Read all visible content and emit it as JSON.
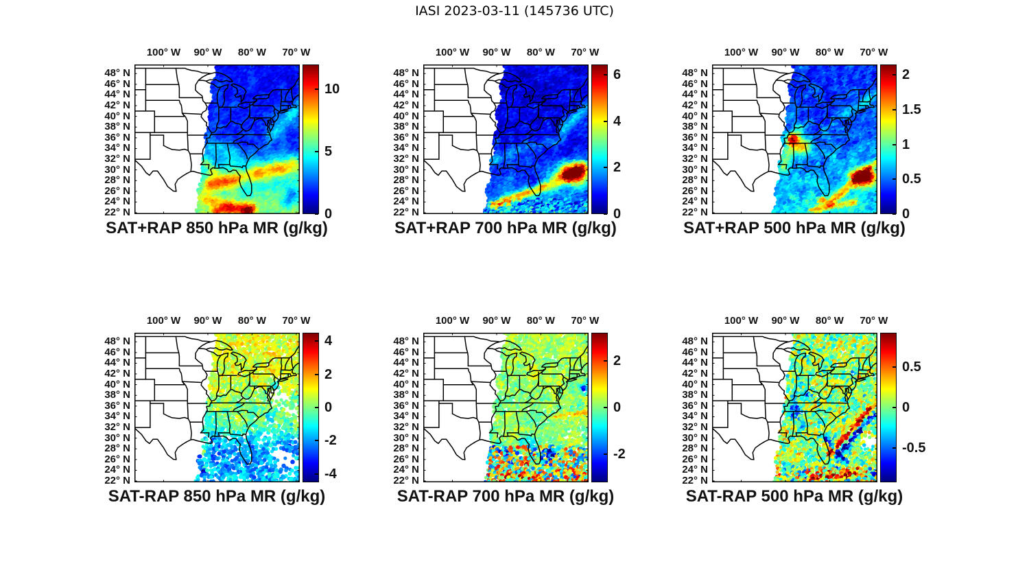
{
  "figure": {
    "title": "IASI 2023-03-11 (145736 UTC)"
  },
  "axes": {
    "lon_ticks": [
      {
        "lon": -100,
        "label": "100° W"
      },
      {
        "lon": -90,
        "label": "90° W"
      },
      {
        "lon": -80,
        "label": "80° W"
      },
      {
        "lon": -70,
        "label": "70° W"
      }
    ],
    "lat_ticks": [
      {
        "lat": 48,
        "label": "48° N"
      },
      {
        "lat": 46,
        "label": "46° N"
      },
      {
        "lat": 44,
        "label": "44° N"
      },
      {
        "lat": 42,
        "label": "42° N"
      },
      {
        "lat": 40,
        "label": "40° N"
      },
      {
        "lat": 38,
        "label": "38° N"
      },
      {
        "lat": 36,
        "label": "36° N"
      },
      {
        "lat": 34,
        "label": "34° N"
      },
      {
        "lat": 32,
        "label": "32° N"
      },
      {
        "lat": 30,
        "label": "30° N"
      },
      {
        "lat": 28,
        "label": "28° N"
      },
      {
        "lat": 26,
        "label": "26° N"
      },
      {
        "lat": 24,
        "label": "24° N"
      },
      {
        "lat": 22,
        "label": "22° N"
      }
    ]
  },
  "chart_data": {
    "type": "geo-scatter-grid",
    "description": "Six map panels of IASI satellite mixing-ratio retrievals over the eastern United States. Top row: SAT+RAP retrieved mixing ratio at 850/700/500 hPa. Bottom row: SAT-RAP differences at the same levels. Jet colormap, satellite swath covers roughly east of 92W-88W.",
    "units": "g/kg",
    "colormap": "jet",
    "extent": {
      "lon_min": -106.6,
      "lon_max": -69.2,
      "lat_min": 21.75,
      "lat_max": 49.7
    },
    "swath": {
      "west_base": -92.6,
      "west_slope": 0.16,
      "wiggle": 0.35
    },
    "panels": [
      {
        "id": "sat-plus-rap-850",
        "title": "SAT+RAP 850 hPa MR (g/kg)",
        "row": 0,
        "col": 0,
        "colorbar": {
          "min": 0,
          "max": 12,
          "ticks": [
            {
              "value": 0,
              "label": "0"
            },
            {
              "value": 5,
              "label": "5"
            },
            {
              "value": 10,
              "label": "10"
            }
          ]
        },
        "dots": {
          "step": 2.6,
          "radius": 3.1,
          "skip": 0
        },
        "field": {
          "base": [
            [
              21.75,
              6.3
            ],
            [
              25,
              5.6
            ],
            [
              28,
              4.9
            ],
            [
              31,
              3.9
            ],
            [
              33,
              2.9
            ],
            [
              35,
              2.3
            ],
            [
              38,
              1.9
            ],
            [
              49.7,
              1.6
            ]
          ],
          "blobs": [
            [
              -80.8,
              22.1,
              1.3,
              0.8,
              5
            ],
            [
              -81.6,
              28.3,
              1.3,
              2.2,
              -1.7
            ],
            [
              -70.8,
              25,
              2,
              1.4,
              -2.3
            ],
            [
              -72.5,
              23.5,
              1.5,
              1,
              -1.8
            ]
          ],
          "bands": [
            [
              -89.5,
              27,
              -70.3,
              30.8,
              1.4,
              4.3
            ],
            [
              -88,
              22.2,
              -80,
              22.8,
              1,
              3.6
            ],
            [
              -91,
              24.5,
              -85,
              23.3,
              1,
              2.2
            ],
            [
              -90.8,
              31.5,
              -88.5,
              29.8,
              1,
              2.2
            ],
            [
              -89,
              34,
              -84,
              33,
              1.5,
              1.2
            ],
            [
              -75.5,
              36.5,
              -69.3,
              41.5,
              1.5,
              2.2
            ]
          ],
          "noise": 0.6,
          "noise_scale": 0.55,
          "jitter": 0.5
        }
      },
      {
        "id": "sat-plus-rap-700",
        "title": "SAT+RAP 700 hPa MR (g/kg)",
        "row": 0,
        "col": 1,
        "colorbar": {
          "min": 0,
          "max": 6.45,
          "ticks": [
            {
              "value": 0,
              "label": "0"
            },
            {
              "value": 2,
              "label": "2"
            },
            {
              "value": 4,
              "label": "4"
            },
            {
              "value": 6,
              "label": "6"
            }
          ]
        },
        "dots": {
          "step": 2.6,
          "radius": 3.1,
          "skip": 0
        },
        "field": {
          "base": [
            [
              21.75,
              1.9
            ],
            [
              26,
              1.5
            ],
            [
              30,
              1.05
            ],
            [
              34,
              0.85
            ],
            [
              40,
              0.7
            ],
            [
              49.7,
              0.6
            ]
          ],
          "blobs": [
            [
              -72.5,
              29.2,
              3.6,
              2,
              5.2
            ],
            [
              -81.6,
              28.2,
              1.4,
              2,
              -0.5
            ]
          ],
          "bands": [
            [
              -90.5,
              23.3,
              -79.5,
              26.5,
              0.85,
              3.0
            ],
            [
              -78,
              27,
              -70.5,
              30.3,
              1.3,
              2.0
            ],
            [
              -74.5,
              37.5,
              -68.5,
              42.5,
              1.3,
              1.2
            ],
            [
              -90.5,
              31.5,
              -87,
              33,
              1.2,
              0.8
            ],
            [
              -86,
              33.8,
              -76,
              35.3,
              1.2,
              0.55
            ]
          ],
          "noise": 0.35,
          "noise_scale": 0.6,
          "jitter": 0.35,
          "speckle": {
            "lat_max": 24.5,
            "amp": 1.1
          }
        }
      },
      {
        "id": "sat-plus-rap-500",
        "title": "SAT+RAP 500 hPa MR (g/kg)",
        "row": 0,
        "col": 2,
        "colorbar": {
          "min": 0,
          "max": 2.15,
          "ticks": [
            {
              "value": 0,
              "label": "0"
            },
            {
              "value": 0.5,
              "label": "0.5"
            },
            {
              "value": 1,
              "label": "1"
            },
            {
              "value": 1.5,
              "label": "1.5"
            },
            {
              "value": 2,
              "label": "2"
            }
          ]
        },
        "dots": {
          "step": 2.6,
          "radius": 3.1,
          "skip": 0
        },
        "field": {
          "base": [
            [
              21.75,
              0.8
            ],
            [
              26,
              0.7
            ],
            [
              30,
              0.6
            ],
            [
              35,
              0.5
            ],
            [
              40,
              0.42
            ],
            [
              49.7,
              0.35
            ]
          ],
          "blobs": [
            [
              -88.3,
              35.6,
              1.4,
              1,
              1.05
            ],
            [
              -86.3,
              34.2,
              2.2,
              1.6,
              0.9
            ],
            [
              -72.3,
              28.5,
              2.6,
              1.6,
              2.1
            ],
            [
              -81.5,
              24.2,
              1,
              0.6,
              0.8
            ]
          ],
          "bands": [
            [
              -80,
              23.5,
              -69,
              31.5,
              0.8,
              0.8
            ],
            [
              -84,
              22.3,
              -74,
              23.8,
              0.6,
              0.65
            ],
            [
              -90.5,
              30.5,
              -87,
              37.5,
              1.3,
              0.45
            ],
            [
              -76,
              40.5,
              -69.5,
              44,
              1,
              0.3
            ]
          ],
          "noise": 0.15,
          "noise_scale": 0.8,
          "jitter": 0.13
        }
      },
      {
        "id": "sat-minus-rap-850",
        "title": "SAT-RAP 850 hPa MR (g/kg)",
        "row": 1,
        "col": 0,
        "colorbar": {
          "min": -4.5,
          "max": 4.5,
          "ticks": [
            {
              "value": -4,
              "label": "-4"
            },
            {
              "value": -2,
              "label": "-2"
            },
            {
              "value": 0,
              "label": "0"
            },
            {
              "value": 2,
              "label": "2"
            },
            {
              "value": 4,
              "label": "4"
            }
          ]
        },
        "dots": {
          "step": 3.4,
          "radius": 2.9,
          "skip": 0.1
        },
        "holes": [
          [
            -74,
            38,
            2.5,
            2,
            0.8
          ],
          [
            -70.8,
            34.8,
            2,
            1.6,
            0.65
          ],
          [
            -76.5,
            31.8,
            1.6,
            1.3,
            0.5
          ],
          [
            -72,
            26,
            3,
            2,
            0.55
          ]
        ],
        "south_skip": {
          "lat": 31,
          "p": 0.22
        },
        "field": {
          "base": [
            [
              21.75,
              -1.6
            ],
            [
              25,
              -2.0
            ],
            [
              28.5,
              -2.0
            ],
            [
              31,
              -0.9
            ],
            [
              33.5,
              -0.1
            ],
            [
              38,
              0.35
            ],
            [
              43,
              0.85
            ],
            [
              49.7,
              0.95
            ]
          ],
          "blobs": [
            [
              -90.6,
              27.3,
              0.4,
              0.3,
              6
            ],
            [
              -90.4,
              24.3,
              0.35,
              0.25,
              6
            ],
            [
              -90.8,
              23.7,
              0.3,
              0.25,
              -4
            ],
            [
              -76,
              34,
              2,
              1.5,
              -0.8
            ],
            [
              -74.5,
              39.5,
              1.2,
              1,
              -1.2
            ],
            [
              -69.7,
              38.4,
              0.3,
              0.25,
              3.5
            ],
            [
              -69.5,
              37.3,
              1.2,
              1,
              -1.0
            ]
          ],
          "bands": [],
          "noise": 0.55,
          "noise_scale": 0.7,
          "jitter": 0.8
        }
      },
      {
        "id": "sat-minus-rap-700",
        "title": "SAT-RAP 700 hPa MR (g/kg)",
        "row": 1,
        "col": 1,
        "colorbar": {
          "min": -3.2,
          "max": 3.2,
          "ticks": [
            {
              "value": -2,
              "label": "-2"
            },
            {
              "value": 0,
              "label": "0"
            },
            {
              "value": 2,
              "label": "2"
            }
          ]
        },
        "dots": {
          "step": 3.2,
          "radius": 2.8,
          "skip": 0.06
        },
        "holes": [
          [
            -74,
            31,
            1.5,
            1.2,
            0.5
          ],
          [
            -70.5,
            30.5,
            1.8,
            1.5,
            0.5
          ]
        ],
        "field": {
          "base": [
            [
              21.75,
              0.35
            ],
            [
              28,
              0.15
            ],
            [
              33,
              0.05
            ],
            [
              44,
              0.2
            ],
            [
              49.7,
              0.3
            ]
          ],
          "blobs": [
            [
              -70.3,
              39.3,
              0.9,
              0.7,
              -2.6
            ],
            [
              -69,
              40.5,
              0.8,
              0.6,
              -1.8
            ],
            [
              -80.5,
              42,
              1.2,
              0.8,
              0.6
            ],
            [
              -77.8,
              27.2,
              1.2,
              0.9,
              -2.2
            ]
          ],
          "bands": [
            [
              -83.5,
              29.5,
              -79,
              26.5,
              1.3,
              -0.9
            ],
            [
              -89.5,
              28.5,
              -86,
              25.5,
              1,
              -0.7
            ],
            [
              -77,
              33.8,
              -69,
              34.8,
              0.45,
              1.2
            ],
            [
              -88,
              23,
              -80,
              22.5,
              0.5,
              1.5
            ],
            [
              -84,
              25.5,
              -80.5,
              24.5,
              0.4,
              1.2
            ]
          ],
          "noise": 0.3,
          "noise_scale": 0.7,
          "jitter": 0.45,
          "speckle": {
            "lat_max": 28.5,
            "amp": 2.2
          }
        }
      },
      {
        "id": "sat-minus-rap-500",
        "title": "SAT-RAP 500 hPa MR (g/kg)",
        "row": 1,
        "col": 2,
        "colorbar": {
          "min": -0.92,
          "max": 0.92,
          "ticks": [
            {
              "value": -0.5,
              "label": "-0.5"
            },
            {
              "value": 0,
              "label": "0"
            },
            {
              "value": 0.5,
              "label": "0.5"
            }
          ]
        },
        "dots": {
          "step": 3.2,
          "radius": 2.8,
          "skip": 0.04
        },
        "holes": [
          [
            -70.6,
            29.6,
            2.4,
            2.0,
            0.9
          ]
        ],
        "field": {
          "base": [
            [
              21.75,
              0.06
            ],
            [
              49.7,
              0.02
            ]
          ],
          "blobs": [
            [
              -87.6,
              35,
              1.4,
              1.6,
              -0.6
            ],
            [
              -86,
              32.5,
              1,
              1.2,
              -0.45
            ],
            [
              -85.2,
              38,
              1,
              0.8,
              -0.45
            ],
            [
              -88.5,
              37.5,
              0.8,
              0.7,
              -0.5
            ],
            [
              -84.8,
              26.8,
              0.8,
              0.6,
              -0.5
            ],
            [
              -71.6,
              28.4,
              0.45,
              0.35,
              -1.4
            ]
          ],
          "bands": [
            [
              -80,
              26.8,
              -71,
              35.2,
              0.5,
              0.95
            ],
            [
              -78.8,
              26.2,
              -69.8,
              34.4,
              0.6,
              -0.8
            ],
            [
              -81,
              30,
              -76.2,
              25.6,
              0.55,
              -0.7
            ],
            [
              -84,
              22.5,
              -72,
              23.5,
              0.8,
              0.5
            ]
          ],
          "noise": 0.2,
          "noise_scale": 0.9,
          "jitter": 0.3,
          "speckle": {
            "lat_max": 24.5,
            "amp": 0.5
          }
        }
      }
    ]
  }
}
